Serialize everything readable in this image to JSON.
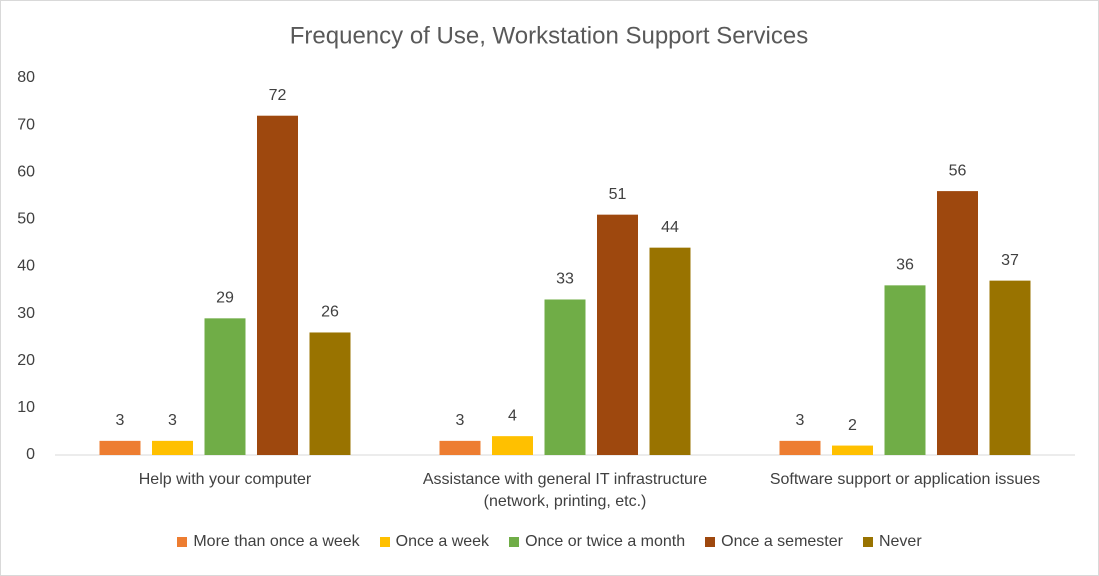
{
  "chart_data": {
    "type": "bar",
    "title": "Frequency of Use, Workstation Support Services",
    "categories": [
      "Help with your computer",
      "Assistance with general IT infrastructure (network, printing, etc.)",
      "Software support or application issues"
    ],
    "series": [
      {
        "name": "More than once a week",
        "color": "#ed7d31",
        "values": [
          3,
          3,
          3
        ]
      },
      {
        "name": "Once a week",
        "color": "#ffc000",
        "values": [
          3,
          4,
          2
        ]
      },
      {
        "name": "Once or twice a month",
        "color": "#70ad47",
        "values": [
          29,
          33,
          36
        ]
      },
      {
        "name": "Once a semester",
        "color": "#9e480e",
        "values": [
          72,
          51,
          56
        ]
      },
      {
        "name": "Never",
        "color": "#997300",
        "values": [
          26,
          44,
          37
        ]
      }
    ],
    "ylim": [
      0,
      80
    ],
    "yticks": [
      0,
      10,
      20,
      30,
      40,
      50,
      60,
      70,
      80
    ],
    "grid": false,
    "legend": "bottom"
  }
}
